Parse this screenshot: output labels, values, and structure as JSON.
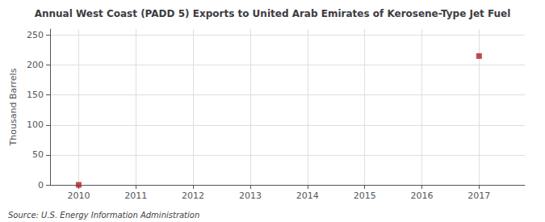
{
  "chart_data": {
    "type": "scatter",
    "title": "Annual West Coast (PADD 5) Exports to United Arab Emirates of Kerosene-Type Jet Fuel",
    "ylabel": "Thousand Barrels",
    "annotations": [
      "Source: U.S. Energy Information Administration"
    ],
    "x": [
      2010,
      2017
    ],
    "values": [
      0,
      215
    ],
    "xlim": [
      2009.5,
      2017.8
    ],
    "ylim": [
      0,
      260
    ],
    "xticks": [
      2010,
      2011,
      2012,
      2013,
      2014,
      2015,
      2016,
      2017
    ],
    "yticks": [
      0,
      50,
      100,
      150,
      200,
      250
    ],
    "grid": true,
    "color": "#aa2222",
    "marker": "square"
  }
}
